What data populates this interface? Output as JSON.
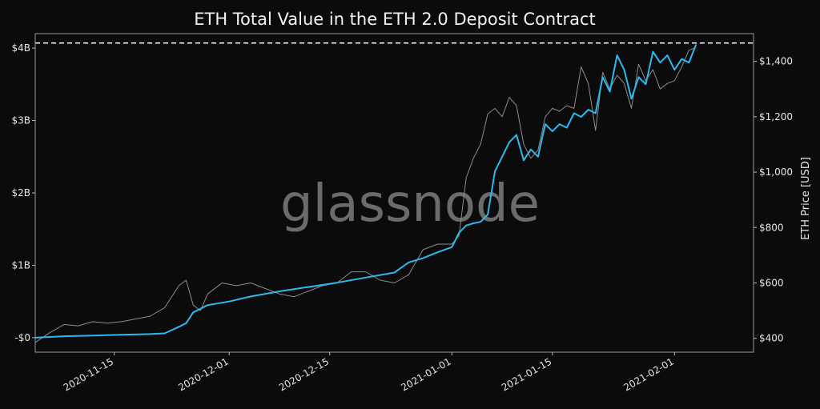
{
  "chart_data": {
    "type": "line",
    "title": "ETH Total Value in the ETH 2.0 Deposit Contract",
    "ylabel_right": "ETH Price [USD]",
    "watermark": "glassnode",
    "x_range": [
      "2020-11-04",
      "2021-02-12"
    ],
    "x_ticks": [
      "2020-11-15",
      "2020-12-01",
      "2020-12-15",
      "2021-01-01",
      "2021-01-15",
      "2021-02-01"
    ],
    "y_left": {
      "range": [
        -200000000,
        4200000000
      ],
      "ticks": [
        0,
        1000000000,
        2000000000,
        3000000000,
        4000000000
      ],
      "tick_labels": [
        "-$0",
        "$1B",
        "$2B",
        "$3B",
        "$4B"
      ]
    },
    "y_right": {
      "range": [
        350,
        1500
      ],
      "ticks": [
        400,
        600,
        800,
        1000,
        1200,
        1400
      ],
      "tick_labels": [
        "$400",
        "$600",
        "$800",
        "$1,000",
        "$1,200",
        "$1,400"
      ]
    },
    "reference_line": {
      "value": 4070000000,
      "axis": "left",
      "style": "dashed",
      "color": "#ffffff"
    },
    "series": [
      {
        "axis": "left",
        "color": "#2fb8f0",
        "x": [
          "2020-11-04",
          "2020-11-08",
          "2020-11-12",
          "2020-11-16",
          "2020-11-20",
          "2020-11-22",
          "2020-11-24",
          "2020-11-25",
          "2020-11-26",
          "2020-11-27",
          "2020-11-28",
          "2020-12-01",
          "2020-12-04",
          "2020-12-08",
          "2020-12-12",
          "2020-12-16",
          "2020-12-20",
          "2020-12-24",
          "2020-12-26",
          "2020-12-28",
          "2020-12-30",
          "2021-01-01",
          "2021-01-02",
          "2021-01-03",
          "2021-01-04",
          "2021-01-05",
          "2021-01-06",
          "2021-01-07",
          "2021-01-08",
          "2021-01-09",
          "2021-01-10",
          "2021-01-11",
          "2021-01-12",
          "2021-01-13",
          "2021-01-14",
          "2021-01-15",
          "2021-01-16",
          "2021-01-17",
          "2021-01-18",
          "2021-01-19",
          "2021-01-20",
          "2021-01-21",
          "2021-01-22",
          "2021-01-23",
          "2021-01-24",
          "2021-01-25",
          "2021-01-26",
          "2021-01-27",
          "2021-01-28",
          "2021-01-29",
          "2021-01-30",
          "2021-01-31",
          "2021-02-01",
          "2021-02-02",
          "2021-02-03",
          "2021-02-04"
        ],
        "values": [
          0,
          20000000,
          30000000,
          40000000,
          50000000,
          60000000,
          150000000,
          200000000,
          350000000,
          400000000,
          450000000,
          500000000,
          570000000,
          640000000,
          700000000,
          760000000,
          830000000,
          900000000,
          1040000000,
          1100000000,
          1180000000,
          1250000000,
          1450000000,
          1550000000,
          1580000000,
          1600000000,
          1700000000,
          2300000000,
          2500000000,
          2700000000,
          2800000000,
          2450000000,
          2600000000,
          2500000000,
          2950000000,
          2850000000,
          2950000000,
          2900000000,
          3100000000,
          3050000000,
          3150000000,
          3100000000,
          3600000000,
          3400000000,
          3900000000,
          3700000000,
          3300000000,
          3600000000,
          3500000000,
          3950000000,
          3800000000,
          3900000000,
          3700000000,
          3850000000,
          3800000000,
          4050000000
        ]
      },
      {
        "axis": "right",
        "color": "#8c8c8c",
        "x": [
          "2020-11-04",
          "2020-11-06",
          "2020-11-08",
          "2020-11-10",
          "2020-11-12",
          "2020-11-14",
          "2020-11-16",
          "2020-11-18",
          "2020-11-20",
          "2020-11-22",
          "2020-11-24",
          "2020-11-25",
          "2020-11-26",
          "2020-11-27",
          "2020-11-28",
          "2020-11-30",
          "2020-12-02",
          "2020-12-04",
          "2020-12-06",
          "2020-12-08",
          "2020-12-10",
          "2020-12-12",
          "2020-12-14",
          "2020-12-16",
          "2020-12-18",
          "2020-12-20",
          "2020-12-22",
          "2020-12-24",
          "2020-12-26",
          "2020-12-28",
          "2020-12-30",
          "2021-01-01",
          "2021-01-02",
          "2021-01-03",
          "2021-01-04",
          "2021-01-05",
          "2021-01-06",
          "2021-01-07",
          "2021-01-08",
          "2021-01-09",
          "2021-01-10",
          "2021-01-11",
          "2021-01-12",
          "2021-01-13",
          "2021-01-14",
          "2021-01-15",
          "2021-01-16",
          "2021-01-17",
          "2021-01-18",
          "2021-01-19",
          "2021-01-20",
          "2021-01-21",
          "2021-01-22",
          "2021-01-23",
          "2021-01-24",
          "2021-01-25",
          "2021-01-26",
          "2021-01-27",
          "2021-01-28",
          "2021-01-29",
          "2021-01-30",
          "2021-01-31",
          "2021-02-01",
          "2021-02-02",
          "2021-02-03",
          "2021-02-04"
        ],
        "values": [
          385,
          420,
          450,
          445,
          460,
          455,
          460,
          470,
          480,
          510,
          590,
          610,
          520,
          500,
          560,
          600,
          590,
          600,
          580,
          560,
          550,
          570,
          590,
          600,
          640,
          640,
          610,
          600,
          630,
          720,
          740,
          740,
          770,
          980,
          1050,
          1100,
          1210,
          1230,
          1200,
          1270,
          1240,
          1100,
          1050,
          1080,
          1200,
          1230,
          1220,
          1240,
          1230,
          1380,
          1320,
          1150,
          1360,
          1300,
          1350,
          1320,
          1230,
          1390,
          1330,
          1370,
          1300,
          1320,
          1330,
          1380,
          1440,
          1450
        ]
      }
    ]
  }
}
